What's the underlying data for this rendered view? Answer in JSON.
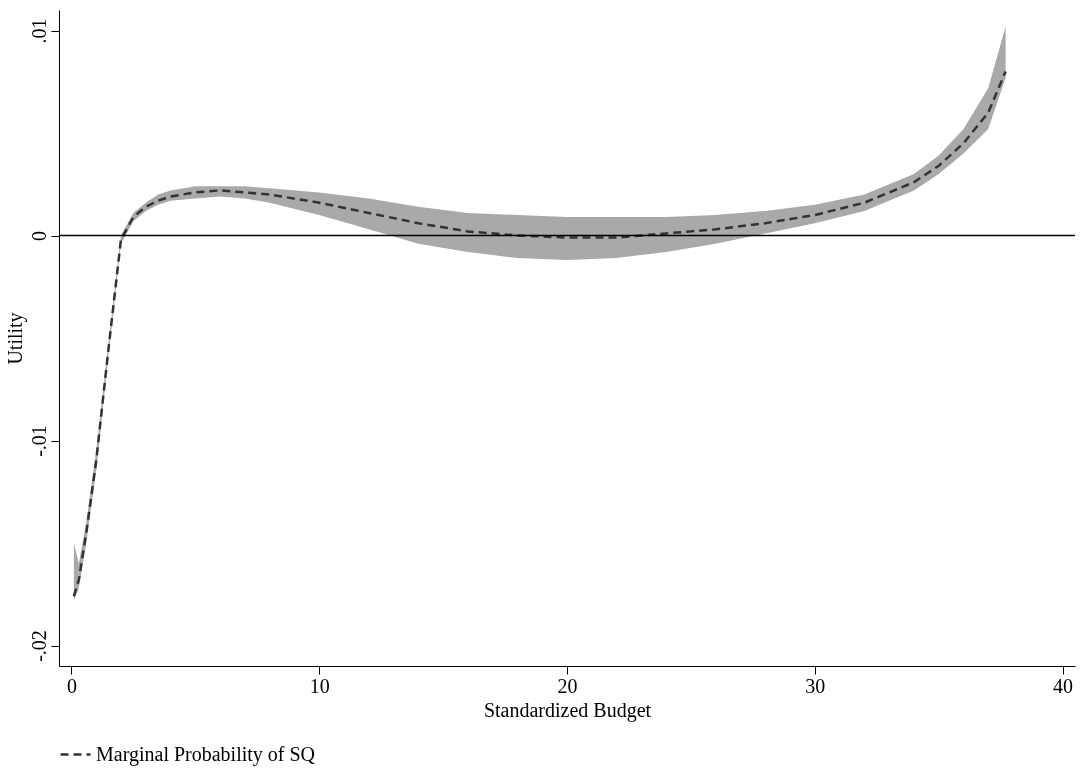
{
  "chart_data": {
    "type": "line",
    "xlabel": "Standardized Budget",
    "ylabel": "Utility",
    "xlim": [
      -0.5,
      40.5
    ],
    "xticks": [
      0,
      10,
      20,
      30,
      40
    ],
    "ylim": [
      -0.021,
      0.011
    ],
    "yticks": [
      {
        "value": -0.02,
        "label": "-.02"
      },
      {
        "value": -0.01,
        "label": "-.01"
      },
      0,
      {
        "value": 0.01,
        "label": ".01"
      }
    ],
    "grid": false,
    "legend": "bottom",
    "line_style": "dashed",
    "marker": "none",
    "ref_lines": [
      {
        "axis": "y",
        "value": 0,
        "color": "#000000",
        "line_style": "solid"
      }
    ],
    "series": [
      {
        "name": "Marginal Probability of SQ",
        "color": "#333333",
        "x": [
          0.1,
          0.3,
          0.6,
          1,
          1.5,
          2,
          2.5,
          3,
          3.5,
          4,
          5,
          6,
          7,
          8,
          10,
          12,
          14,
          16,
          18,
          20,
          22,
          24,
          26,
          28,
          30,
          32,
          34,
          35,
          36,
          37,
          37.7
        ],
        "values": [
          -0.0176,
          -0.0168,
          -0.0145,
          -0.011,
          -0.0055,
          -0.0002,
          0.0009,
          0.0014,
          0.0017,
          0.0019,
          0.0021,
          0.0022,
          0.0021,
          0.002,
          0.0016,
          0.0011,
          0.0006,
          0.0002,
          0.0,
          -0.0001,
          -0.0001,
          0.0001,
          0.0003,
          0.0006,
          0.001,
          0.0016,
          0.0026,
          0.0034,
          0.0045,
          0.006,
          0.008
        ],
        "upper": [
          -0.015,
          -0.016,
          -0.014,
          -0.0105,
          -0.0052,
          0.0,
          0.0011,
          0.0016,
          0.002,
          0.0022,
          0.0024,
          0.0024,
          0.0024,
          0.0023,
          0.0021,
          0.0018,
          0.0014,
          0.0011,
          0.001,
          0.0009,
          0.0009,
          0.0009,
          0.001,
          0.0012,
          0.0015,
          0.002,
          0.003,
          0.0039,
          0.0052,
          0.0072,
          0.0102
        ],
        "lower": [
          -0.0178,
          -0.0172,
          -0.015,
          -0.0115,
          -0.0058,
          -0.0004,
          0.0007,
          0.0012,
          0.0015,
          0.0017,
          0.0018,
          0.0019,
          0.0018,
          0.0016,
          0.001,
          0.0003,
          -0.0004,
          -0.0008,
          -0.0011,
          -0.0012,
          -0.0011,
          -0.0008,
          -0.0004,
          0.0001,
          0.0006,
          0.0012,
          0.0022,
          0.003,
          0.004,
          0.0052,
          0.0077
        ]
      }
    ]
  }
}
